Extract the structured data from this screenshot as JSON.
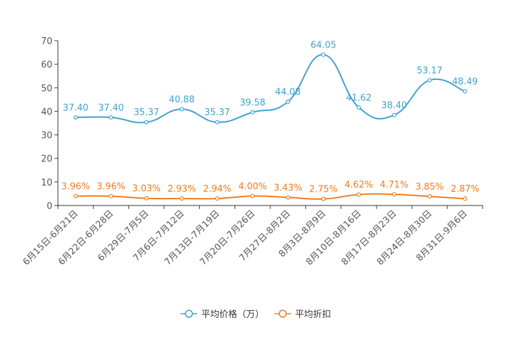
{
  "chart_data": {
    "type": "line",
    "categories": [
      "6月15日-6月21日",
      "6月22日-6月28日",
      "6月29日-7月5日",
      "7月6日-7月12日",
      "7月13日-7月19日",
      "7月20日-7月26日",
      "7月27日-8月2日",
      "8月3日-8月9日",
      "8月10日-8月16日",
      "8月17日-8月23日",
      "8月24日-8月30日",
      "8月31日-9月6日"
    ],
    "series": [
      {
        "name": "平均价格（万）",
        "color": "#3fa2ce",
        "values": [
          37.4,
          37.4,
          35.37,
          40.88,
          35.37,
          39.58,
          44.08,
          64.05,
          41.62,
          38.4,
          53.17,
          48.49
        ],
        "labels": [
          "37.40",
          "37.40",
          "35.37",
          "40.88",
          "35.37",
          "39.58",
          "44.08",
          "64.05",
          "41.62",
          "38.40",
          "53.17",
          "48.49"
        ]
      },
      {
        "name": "平均折扣",
        "color": "#f07b1b",
        "values": [
          3.96,
          3.96,
          3.03,
          2.93,
          2.94,
          4.0,
          3.43,
          2.75,
          4.62,
          4.71,
          3.85,
          2.87
        ],
        "labels": [
          "3.96%",
          "3.96%",
          "3.03%",
          "2.93%",
          "2.94%",
          "4.00%",
          "3.43%",
          "2.75%",
          "4.62%",
          "4.71%",
          "3.85%",
          "2.87%"
        ]
      }
    ],
    "yticks": [
      "0",
      "10",
      "20",
      "30",
      "40",
      "50",
      "60",
      "70"
    ],
    "ylim": [
      0,
      70
    ],
    "title": "",
    "xlabel": "",
    "ylabel": "",
    "legend": "bottom-center"
  }
}
